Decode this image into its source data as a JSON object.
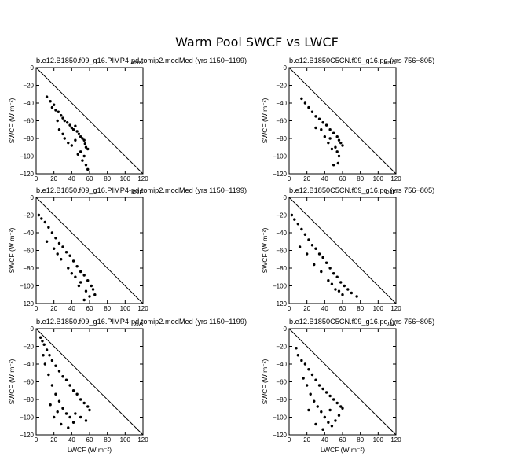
{
  "figure": {
    "title": "Warm Pool SWCF vs LWCF"
  },
  "colors": {
    "points": "#000000",
    "axes": "#000000",
    "background": "#ffffff"
  },
  "chart_data": [
    {
      "type": "scatter",
      "row": 0,
      "col": 0,
      "title": "b.e12.B1850.f09_g16.PIMP4-pd.tomip2.modMed (yrs 1150−1199)",
      "season": "ANN",
      "xlabel": "",
      "ylabel": "SWCF (W m⁻²)",
      "xlim": [
        0,
        120
      ],
      "ylim": [
        -120,
        0
      ],
      "has_one_to_one_line": true,
      "xticks": [
        "0",
        "20",
        "40",
        "60",
        "80",
        "100",
        "120"
      ],
      "yticks": [
        "0",
        "−20",
        "−40",
        "−60",
        "−80",
        "−100",
        "−120"
      ],
      "points": [
        [
          12,
          -33
        ],
        [
          16,
          -38
        ],
        [
          20,
          -42
        ],
        [
          22,
          -48
        ],
        [
          25,
          -50
        ],
        [
          28,
          -54
        ],
        [
          30,
          -57
        ],
        [
          32,
          -60
        ],
        [
          35,
          -62
        ],
        [
          38,
          -65
        ],
        [
          40,
          -68
        ],
        [
          42,
          -70
        ],
        [
          44,
          -66
        ],
        [
          46,
          -72
        ],
        [
          48,
          -75
        ],
        [
          50,
          -78
        ],
        [
          52,
          -80
        ],
        [
          54,
          -82
        ],
        [
          55,
          -86
        ],
        [
          56,
          -90
        ],
        [
          58,
          -92
        ],
        [
          50,
          -95
        ],
        [
          54,
          -100
        ],
        [
          47,
          -98
        ],
        [
          56,
          -110
        ],
        [
          58,
          -115
        ],
        [
          52,
          -105
        ],
        [
          32,
          -80
        ],
        [
          36,
          -85
        ],
        [
          40,
          -88
        ],
        [
          44,
          -82
        ],
        [
          30,
          -75
        ],
        [
          24,
          -60
        ],
        [
          18,
          -45
        ],
        [
          26,
          -70
        ]
      ]
    },
    {
      "type": "scatter",
      "row": 0,
      "col": 1,
      "title": "b.e12.B1850C5CN.f09_g16.pd (yrs 756−805)",
      "season": "ANN",
      "xlabel": "",
      "ylabel": "SWCF (W m⁻²)",
      "xlim": [
        0,
        120
      ],
      "ylim": [
        -120,
        0
      ],
      "has_one_to_one_line": true,
      "xticks": [
        "0",
        "20",
        "40",
        "60",
        "80",
        "100",
        "120"
      ],
      "yticks": [
        "0",
        "−20",
        "−40",
        "−60",
        "−80",
        "−100",
        "−120"
      ],
      "points": [
        [
          14,
          -35
        ],
        [
          18,
          -40
        ],
        [
          22,
          -45
        ],
        [
          26,
          -50
        ],
        [
          30,
          -55
        ],
        [
          34,
          -58
        ],
        [
          38,
          -62
        ],
        [
          42,
          -65
        ],
        [
          46,
          -70
        ],
        [
          50,
          -74
        ],
        [
          54,
          -78
        ],
        [
          56,
          -82
        ],
        [
          58,
          -85
        ],
        [
          60,
          -88
        ],
        [
          52,
          -90
        ],
        [
          54,
          -95
        ],
        [
          56,
          -100
        ],
        [
          48,
          -92
        ],
        [
          50,
          -110
        ],
        [
          55,
          -108
        ],
        [
          46,
          -80
        ],
        [
          36,
          -70
        ],
        [
          40,
          -78
        ],
        [
          30,
          -68
        ],
        [
          44,
          -85
        ]
      ]
    },
    {
      "type": "scatter",
      "row": 1,
      "col": 0,
      "title": "b.e12.B1850.f09_g16.PIMP4-pd.tomip2.modMed (yrs 1150−1199)",
      "season": "DJF",
      "xlabel": "",
      "ylabel": "SWCF (W m⁻²)",
      "xlim": [
        0,
        120
      ],
      "ylim": [
        -120,
        0
      ],
      "has_one_to_one_line": true,
      "xticks": [
        "0",
        "20",
        "40",
        "60",
        "80",
        "100",
        "120"
      ],
      "yticks": [
        "0",
        "−20",
        "−40",
        "−60",
        "−80",
        "−100",
        "−120"
      ],
      "points": [
        [
          3,
          -20
        ],
        [
          6,
          -24
        ],
        [
          10,
          -28
        ],
        [
          14,
          -34
        ],
        [
          18,
          -40
        ],
        [
          22,
          -46
        ],
        [
          26,
          -52
        ],
        [
          30,
          -56
        ],
        [
          34,
          -62
        ],
        [
          38,
          -66
        ],
        [
          42,
          -72
        ],
        [
          46,
          -78
        ],
        [
          50,
          -84
        ],
        [
          54,
          -88
        ],
        [
          58,
          -94
        ],
        [
          62,
          -100
        ],
        [
          64,
          -104
        ],
        [
          66,
          -110
        ],
        [
          60,
          -112
        ],
        [
          56,
          -106
        ],
        [
          50,
          -96
        ],
        [
          44,
          -90
        ],
        [
          36,
          -80
        ],
        [
          28,
          -70
        ],
        [
          20,
          -58
        ],
        [
          12,
          -50
        ],
        [
          24,
          -64
        ],
        [
          40,
          -86
        ],
        [
          48,
          -100
        ],
        [
          54,
          -116
        ]
      ]
    },
    {
      "type": "scatter",
      "row": 1,
      "col": 1,
      "title": "b.e12.B1850C5CN.f09_g16.pd (yrs 756−805)",
      "season": "DJF",
      "xlabel": "",
      "ylabel": "SWCF (W m⁻²)",
      "xlim": [
        0,
        120
      ],
      "ylim": [
        -120,
        0
      ],
      "has_one_to_one_line": true,
      "xticks": [
        "0",
        "20",
        "40",
        "60",
        "80",
        "100",
        "120"
      ],
      "yticks": [
        "0",
        "−20",
        "−40",
        "−60",
        "−80",
        "−100",
        "−120"
      ],
      "points": [
        [
          3,
          -20
        ],
        [
          6,
          -25
        ],
        [
          10,
          -30
        ],
        [
          14,
          -36
        ],
        [
          18,
          -42
        ],
        [
          22,
          -48
        ],
        [
          26,
          -54
        ],
        [
          30,
          -58
        ],
        [
          34,
          -64
        ],
        [
          38,
          -68
        ],
        [
          42,
          -74
        ],
        [
          46,
          -80
        ],
        [
          50,
          -86
        ],
        [
          54,
          -90
        ],
        [
          58,
          -96
        ],
        [
          62,
          -100
        ],
        [
          66,
          -104
        ],
        [
          70,
          -108
        ],
        [
          76,
          -112
        ],
        [
          60,
          -110
        ],
        [
          52,
          -104
        ],
        [
          44,
          -94
        ],
        [
          36,
          -84
        ],
        [
          28,
          -76
        ],
        [
          20,
          -64
        ],
        [
          12,
          -56
        ],
        [
          48,
          -98
        ],
        [
          56,
          -106
        ]
      ]
    },
    {
      "type": "scatter",
      "row": 2,
      "col": 0,
      "title": "b.e12.B1850.f09_g16.PIMP4-pd.tomip2.modMed (yrs 1150−1199)",
      "season": "JJA",
      "xlabel": "LWCF (W m⁻²)",
      "ylabel": "SWCF (W m⁻²)",
      "xlim": [
        0,
        120
      ],
      "ylim": [
        -120,
        0
      ],
      "has_one_to_one_line": true,
      "xticks": [
        "0",
        "20",
        "40",
        "60",
        "80",
        "100",
        "120"
      ],
      "yticks": [
        "0",
        "−20",
        "−40",
        "−60",
        "−80",
        "−100",
        "−120"
      ],
      "points": [
        [
          5,
          -10
        ],
        [
          7,
          -14
        ],
        [
          9,
          -18
        ],
        [
          12,
          -24
        ],
        [
          15,
          -30
        ],
        [
          18,
          -36
        ],
        [
          22,
          -42
        ],
        [
          26,
          -48
        ],
        [
          30,
          -54
        ],
        [
          34,
          -58
        ],
        [
          38,
          -64
        ],
        [
          42,
          -70
        ],
        [
          46,
          -74
        ],
        [
          50,
          -80
        ],
        [
          54,
          -84
        ],
        [
          58,
          -88
        ],
        [
          60,
          -92
        ],
        [
          10,
          -40
        ],
        [
          14,
          -52
        ],
        [
          18,
          -64
        ],
        [
          22,
          -74
        ],
        [
          26,
          -82
        ],
        [
          30,
          -90
        ],
        [
          34,
          -96
        ],
        [
          38,
          -100
        ],
        [
          42,
          -106
        ],
        [
          20,
          -100
        ],
        [
          28,
          -108
        ],
        [
          36,
          -112
        ],
        [
          44,
          -96
        ],
        [
          50,
          -100
        ],
        [
          56,
          -104
        ],
        [
          8,
          -30
        ],
        [
          16,
          -86
        ],
        [
          24,
          -94
        ]
      ]
    },
    {
      "type": "scatter",
      "row": 2,
      "col": 1,
      "title": "b.e12.B1850C5CN.f09_g16.pd (yrs 756−805)",
      "season": "JJA",
      "xlabel": "LWCF (W m⁻²)",
      "ylabel": "SWCF (W m⁻²)",
      "xlim": [
        0,
        120
      ],
      "ylim": [
        -120,
        0
      ],
      "has_one_to_one_line": true,
      "xticks": [
        "0",
        "20",
        "40",
        "60",
        "80",
        "100",
        "120"
      ],
      "yticks": [
        "0",
        "−20",
        "−40",
        "−60",
        "−80",
        "−100",
        "−120"
      ],
      "points": [
        [
          8,
          -22
        ],
        [
          10,
          -30
        ],
        [
          14,
          -36
        ],
        [
          18,
          -40
        ],
        [
          22,
          -46
        ],
        [
          26,
          -52
        ],
        [
          30,
          -58
        ],
        [
          34,
          -64
        ],
        [
          38,
          -68
        ],
        [
          42,
          -72
        ],
        [
          46,
          -76
        ],
        [
          50,
          -80
        ],
        [
          54,
          -84
        ],
        [
          58,
          -88
        ],
        [
          60,
          -90
        ],
        [
          16,
          -56
        ],
        [
          20,
          -64
        ],
        [
          24,
          -74
        ],
        [
          28,
          -82
        ],
        [
          32,
          -88
        ],
        [
          36,
          -94
        ],
        [
          40,
          -100
        ],
        [
          44,
          -106
        ],
        [
          48,
          -110
        ],
        [
          52,
          -104
        ],
        [
          56,
          -98
        ],
        [
          30,
          -108
        ],
        [
          38,
          -114
        ],
        [
          22,
          -92
        ],
        [
          46,
          -92
        ]
      ]
    }
  ]
}
